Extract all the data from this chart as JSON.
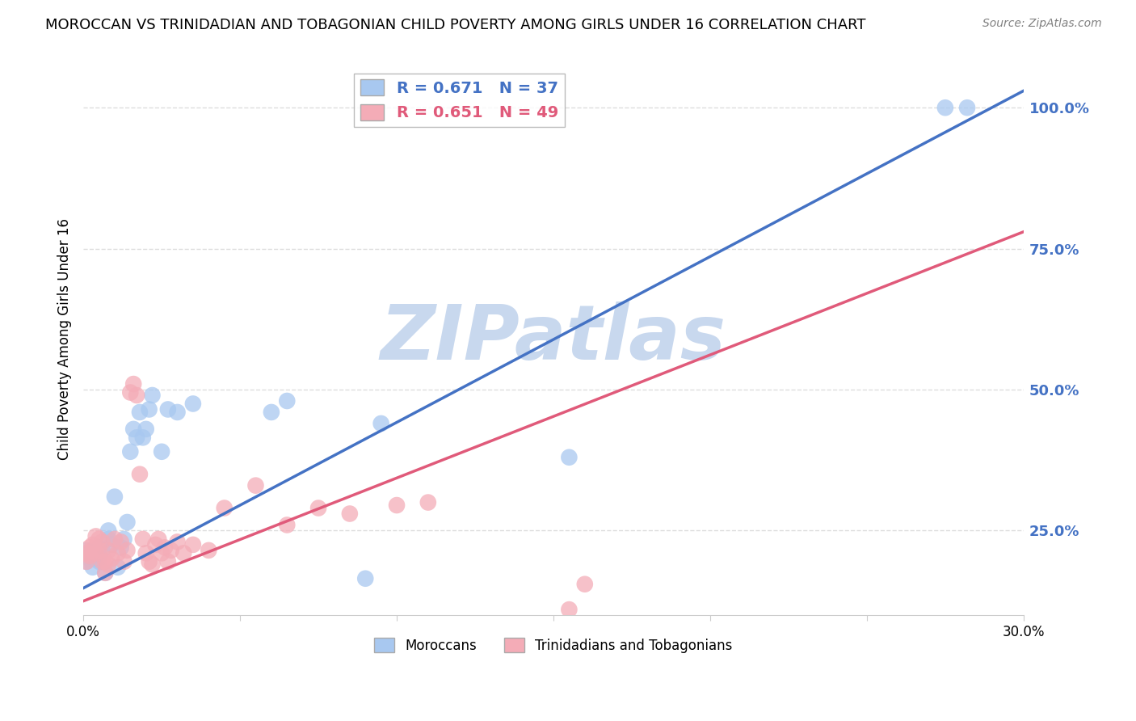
{
  "title": "MOROCCAN VS TRINIDADIAN AND TOBAGONIAN CHILD POVERTY AMONG GIRLS UNDER 16 CORRELATION CHART",
  "source": "Source: ZipAtlas.com",
  "ylabel": "Child Poverty Among Girls Under 16",
  "xlim": [
    0.0,
    0.3
  ],
  "ylim": [
    0.1,
    1.08
  ],
  "xticks": [
    0.0,
    0.05,
    0.1,
    0.15,
    0.2,
    0.25,
    0.3
  ],
  "xtick_labels": [
    "0.0%",
    "",
    "",
    "",
    "",
    "",
    "30.0%"
  ],
  "ytick_right": [
    0.25,
    0.5,
    0.75,
    1.0
  ],
  "ytick_right_labels": [
    "25.0%",
    "50.0%",
    "75.0%",
    "100.0%"
  ],
  "blue_R": 0.671,
  "blue_N": 37,
  "pink_R": 0.651,
  "pink_N": 49,
  "blue_color": "#A8C8F0",
  "pink_color": "#F4ACB7",
  "blue_line_color": "#4472C4",
  "pink_line_color": "#E05A7A",
  "watermark": "ZIPatlas",
  "watermark_color": "#C8D8EE",
  "blue_line_x0": 0.0,
  "blue_line_y0": 0.148,
  "blue_line_x1": 0.3,
  "blue_line_y1": 1.03,
  "pink_line_x0": 0.0,
  "pink_line_y0": 0.125,
  "pink_line_x1": 0.3,
  "pink_line_y1": 0.78,
  "blue_scatter_x": [
    0.001,
    0.001,
    0.002,
    0.003,
    0.003,
    0.004,
    0.005,
    0.005,
    0.006,
    0.007,
    0.008,
    0.008,
    0.009,
    0.01,
    0.011,
    0.012,
    0.013,
    0.014,
    0.015,
    0.016,
    0.017,
    0.018,
    0.019,
    0.02,
    0.021,
    0.022,
    0.025,
    0.027,
    0.03,
    0.035,
    0.06,
    0.065,
    0.09,
    0.095,
    0.155,
    0.275,
    0.282
  ],
  "blue_scatter_y": [
    0.195,
    0.215,
    0.2,
    0.185,
    0.21,
    0.2,
    0.22,
    0.195,
    0.215,
    0.175,
    0.235,
    0.25,
    0.225,
    0.31,
    0.185,
    0.22,
    0.235,
    0.265,
    0.39,
    0.43,
    0.415,
    0.46,
    0.415,
    0.43,
    0.465,
    0.49,
    0.39,
    0.465,
    0.46,
    0.475,
    0.46,
    0.48,
    0.165,
    0.44,
    0.38,
    1.0,
    1.0
  ],
  "pink_scatter_x": [
    0.001,
    0.001,
    0.002,
    0.002,
    0.003,
    0.003,
    0.004,
    0.004,
    0.005,
    0.005,
    0.006,
    0.006,
    0.007,
    0.007,
    0.008,
    0.008,
    0.009,
    0.01,
    0.011,
    0.012,
    0.013,
    0.014,
    0.015,
    0.016,
    0.017,
    0.018,
    0.019,
    0.02,
    0.021,
    0.022,
    0.023,
    0.024,
    0.025,
    0.026,
    0.027,
    0.028,
    0.03,
    0.032,
    0.035,
    0.04,
    0.045,
    0.055,
    0.065,
    0.075,
    0.085,
    0.1,
    0.11,
    0.155,
    0.16
  ],
  "pink_scatter_y": [
    0.195,
    0.21,
    0.205,
    0.22,
    0.225,
    0.215,
    0.24,
    0.21,
    0.235,
    0.215,
    0.195,
    0.23,
    0.175,
    0.195,
    0.19,
    0.215,
    0.2,
    0.235,
    0.21,
    0.23,
    0.195,
    0.215,
    0.495,
    0.51,
    0.49,
    0.35,
    0.235,
    0.21,
    0.195,
    0.19,
    0.225,
    0.235,
    0.21,
    0.22,
    0.195,
    0.215,
    0.23,
    0.21,
    0.225,
    0.215,
    0.29,
    0.33,
    0.26,
    0.29,
    0.28,
    0.295,
    0.3,
    0.11,
    0.155
  ],
  "legend_blue_label": "R = 0.671   N = 37",
  "legend_pink_label": "R = 0.651   N = 49",
  "bottom_legend_blue": "Moroccans",
  "bottom_legend_pink": "Trinidadians and Tobagonians",
  "grid_color": "#DDDDDD",
  "background_color": "#FFFFFF",
  "title_fontsize": 13,
  "tick_label_color_right": "#4472C4"
}
